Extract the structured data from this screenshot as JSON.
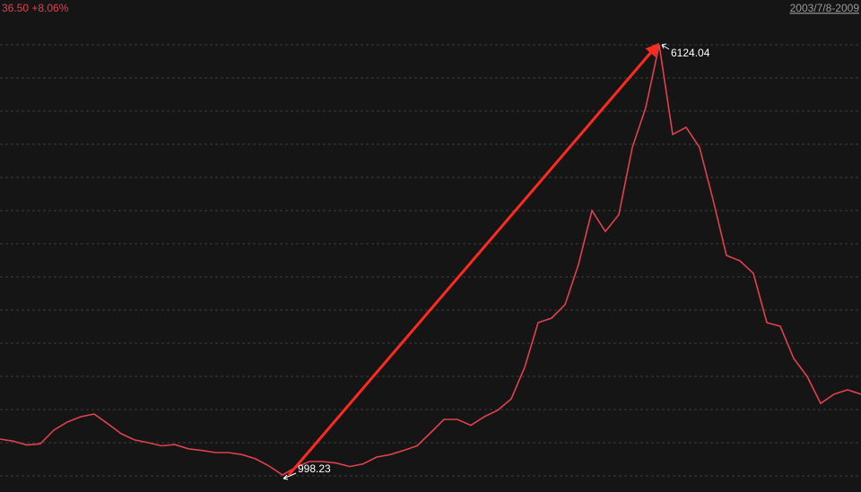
{
  "chart_data": {
    "type": "line",
    "labels": {
      "quote": "36.50 +8.06%",
      "range": "2003/7/8-2009"
    },
    "values": [
      1425,
      1400,
      1355,
      1370,
      1532,
      1628,
      1692,
      1724,
      1610,
      1490,
      1415,
      1383,
      1345,
      1360,
      1310,
      1290,
      1265,
      1265,
      1240,
      1190,
      1105,
      998.23,
      1090,
      1158,
      1158,
      1140,
      1098,
      1130,
      1212,
      1240,
      1290,
      1345,
      1500,
      1660,
      1660,
      1590,
      1692,
      1770,
      1905,
      2280,
      2813,
      2867,
      3027,
      3507,
      4148,
      3900,
      4100,
      4900,
      5376,
      6124.04,
      5056,
      5140,
      4900,
      4280,
      3614,
      3550,
      3400,
      2813,
      2770,
      2386,
      2172,
      1850,
      1960,
      2012,
      1960
    ],
    "color": "#e0404e",
    "ylim": [
      795,
      6658
    ]
  }
}
